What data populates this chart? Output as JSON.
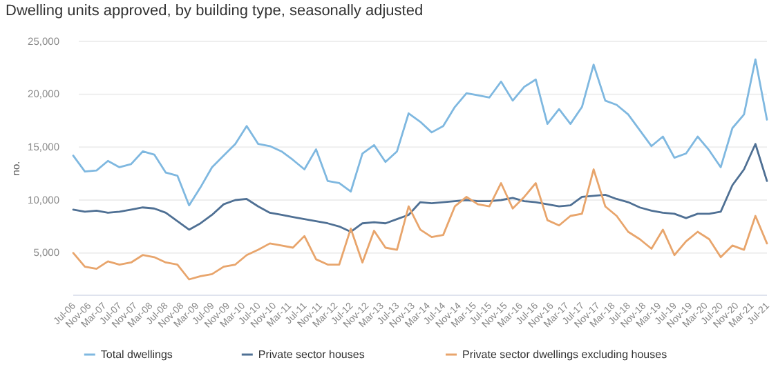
{
  "chart_data": {
    "type": "line",
    "title": "Dwelling units approved, by building type, seasonally adjusted",
    "ylabel": "no.",
    "x": [
      "2006-07",
      "2006-10",
      "2007-01",
      "2007-04",
      "2007-07",
      "2007-10",
      "2008-01",
      "2008-04",
      "2008-07",
      "2008-10",
      "2009-01",
      "2009-04",
      "2009-07",
      "2009-10",
      "2010-01",
      "2010-04",
      "2010-07",
      "2010-10",
      "2011-01",
      "2011-04",
      "2011-07",
      "2011-10",
      "2012-01",
      "2012-04",
      "2012-07",
      "2012-10",
      "2013-01",
      "2013-04",
      "2013-07",
      "2013-10",
      "2014-01",
      "2014-04",
      "2014-07",
      "2014-10",
      "2015-01",
      "2015-04",
      "2015-07",
      "2015-10",
      "2016-01",
      "2016-04",
      "2016-07",
      "2016-10",
      "2017-01",
      "2017-04",
      "2017-07",
      "2017-10",
      "2018-01",
      "2018-04",
      "2018-07",
      "2018-10",
      "2019-01",
      "2019-04",
      "2019-07",
      "2019-10",
      "2020-01",
      "2020-04",
      "2020-07",
      "2020-10",
      "2021-01",
      "2021-04",
      "2021-07"
    ],
    "series": [
      {
        "name": "Total dwellings",
        "color": "#7fb8e0",
        "values": [
          14200,
          12700,
          12800,
          13700,
          13100,
          13400,
          14600,
          14300,
          12600,
          12300,
          9500,
          11200,
          13100,
          14200,
          15300,
          17000,
          15300,
          15100,
          14600,
          13800,
          12900,
          14800,
          11800,
          11600,
          10800,
          14400,
          15200,
          13600,
          14600,
          18200,
          17400,
          16400,
          17000,
          18800,
          20100,
          19900,
          19700,
          21200,
          19400,
          20700,
          21400,
          17200,
          18600,
          17200,
          18800,
          22800,
          19400,
          19000,
          18100,
          16600,
          15100,
          16000,
          14000,
          14400,
          16000,
          14700,
          13100,
          16800,
          18100,
          23300,
          17600
        ]
      },
      {
        "name": "Private sector houses",
        "color": "#4f7094",
        "values": [
          9100,
          8900,
          9000,
          8800,
          8900,
          9100,
          9300,
          9200,
          8800,
          8000,
          7200,
          7800,
          8600,
          9600,
          10000,
          10100,
          9400,
          8800,
          8600,
          8400,
          8200,
          8000,
          7800,
          7500,
          7000,
          7800,
          7900,
          7800,
          8200,
          8600,
          9800,
          9700,
          9800,
          9900,
          10000,
          9900,
          9900,
          10000,
          10200,
          9900,
          9800,
          9600,
          9400,
          9500,
          10300,
          10400,
          10500,
          10100,
          9800,
          9300,
          9000,
          8800,
          8700,
          8300,
          8700,
          8700,
          8900,
          11400,
          12900,
          15300,
          11800
        ]
      },
      {
        "name": "Private sector dwellings excluding houses",
        "color": "#e8a56c",
        "values": [
          5000,
          3700,
          3500,
          4200,
          3900,
          4100,
          4800,
          4600,
          4100,
          3900,
          2500,
          2800,
          3000,
          3700,
          3900,
          4800,
          5300,
          5900,
          5700,
          5500,
          6600,
          4400,
          3900,
          3900,
          7300,
          4100,
          7100,
          5500,
          5300,
          9400,
          7200,
          6500,
          6700,
          9400,
          10300,
          9600,
          9400,
          11600,
          9200,
          10300,
          11600,
          8100,
          7600,
          8500,
          8700,
          12900,
          9400,
          8500,
          7000,
          6300,
          5400,
          7200,
          4800,
          6100,
          7000,
          6300,
          4600,
          5700,
          5300,
          8500,
          5900
        ]
      }
    ],
    "xlim": [
      "2006-07",
      "2021-07"
    ],
    "xticks": [
      {
        "value": "2006-07",
        "label": "Jul-06"
      },
      {
        "value": "2006-11",
        "label": "Nov-06"
      },
      {
        "value": "2007-03",
        "label": "Mar-07"
      },
      {
        "value": "2007-07",
        "label": "Jul-07"
      },
      {
        "value": "2007-11",
        "label": "Nov-07"
      },
      {
        "value": "2008-03",
        "label": "Mar-08"
      },
      {
        "value": "2008-07",
        "label": "Jul-08"
      },
      {
        "value": "2008-11",
        "label": "Nov-08"
      },
      {
        "value": "2009-03",
        "label": "Mar-09"
      },
      {
        "value": "2009-07",
        "label": "Jul-09"
      },
      {
        "value": "2009-11",
        "label": "Nov-09"
      },
      {
        "value": "2010-03",
        "label": "Mar-10"
      },
      {
        "value": "2010-07",
        "label": "Jul-10"
      },
      {
        "value": "2010-11",
        "label": "Nov-10"
      },
      {
        "value": "2011-03",
        "label": "Mar-11"
      },
      {
        "value": "2011-07",
        "label": "Jul-11"
      },
      {
        "value": "2011-11",
        "label": "Nov-11"
      },
      {
        "value": "2012-03",
        "label": "Mar-12"
      },
      {
        "value": "2012-07",
        "label": "Jul-12"
      },
      {
        "value": "2012-11",
        "label": "Nov-12"
      },
      {
        "value": "2013-03",
        "label": "Mar-13"
      },
      {
        "value": "2013-07",
        "label": "Jul-13"
      },
      {
        "value": "2013-11",
        "label": "Nov-13"
      },
      {
        "value": "2014-03",
        "label": "Mar-14"
      },
      {
        "value": "2014-07",
        "label": "Jul-14"
      },
      {
        "value": "2014-11",
        "label": "Nov-14"
      },
      {
        "value": "2015-03",
        "label": "Mar-15"
      },
      {
        "value": "2015-07",
        "label": "Jul-15"
      },
      {
        "value": "2015-11",
        "label": "Nov-15"
      },
      {
        "value": "2016-03",
        "label": "Mar-16"
      },
      {
        "value": "2016-07",
        "label": "Jul-16"
      },
      {
        "value": "2016-11",
        "label": "Nov-16"
      },
      {
        "value": "2017-03",
        "label": "Mar-17"
      },
      {
        "value": "2017-07",
        "label": "Jul-17"
      },
      {
        "value": "2017-11",
        "label": "Nov-17"
      },
      {
        "value": "2018-03",
        "label": "Mar-18"
      },
      {
        "value": "2018-07",
        "label": "Jul-18"
      },
      {
        "value": "2018-11",
        "label": "Nov-18"
      },
      {
        "value": "2019-03",
        "label": "Mar-19"
      },
      {
        "value": "2019-07",
        "label": "Jul-19"
      },
      {
        "value": "2019-11",
        "label": "Nov-19"
      },
      {
        "value": "2020-03",
        "label": "Mar-20"
      },
      {
        "value": "2020-07",
        "label": "Jul-20"
      },
      {
        "value": "2020-11",
        "label": "Nov-20"
      },
      {
        "value": "2021-03",
        "label": "Mar-21"
      },
      {
        "value": "2021-07",
        "label": "Jul-21"
      }
    ],
    "ylim": [
      1000,
      25000
    ],
    "yticks": [
      {
        "value": 5000,
        "label": "5,000"
      },
      {
        "value": 10000,
        "label": "10,000"
      },
      {
        "value": 15000,
        "label": "15,000"
      },
      {
        "value": 20000,
        "label": "20,000"
      },
      {
        "value": 25000,
        "label": "25,000"
      }
    ],
    "grid": "y",
    "legend": "bottom",
    "marker": "none",
    "line_style": "solid"
  }
}
